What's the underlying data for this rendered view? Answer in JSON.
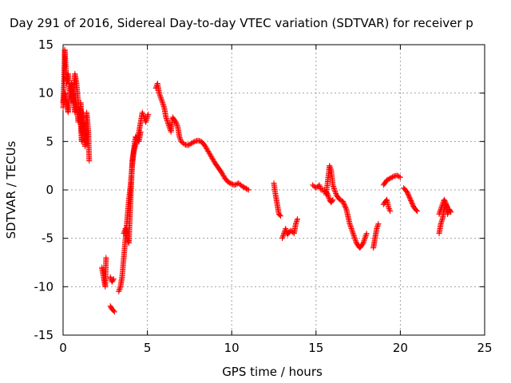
{
  "chart_data": {
    "type": "scatter",
    "title": "Day 291 of 2016, Sidereal Day-to-day VTEC variation (SDTVAR) for receiver p",
    "xlabel": "GPS time / hours",
    "ylabel": "SDTVAR / TECUs",
    "xlim": [
      0,
      25
    ],
    "ylim": [
      -15,
      15
    ],
    "xticks": [
      0,
      5,
      10,
      15,
      20,
      25
    ],
    "yticks": [
      -15,
      -10,
      -5,
      0,
      5,
      10,
      15
    ],
    "grid": true,
    "marker": "+",
    "color": "#ff0000",
    "segments": [
      [
        [
          0.0,
          9
        ],
        [
          0.05,
          11
        ],
        [
          0.1,
          14.5
        ],
        [
          0.15,
          13
        ],
        [
          0.2,
          11
        ],
        [
          0.3,
          12
        ],
        [
          0.4,
          10
        ],
        [
          0.5,
          11
        ],
        [
          0.6,
          9
        ],
        [
          0.7,
          12
        ],
        [
          0.8,
          11
        ],
        [
          0.9,
          9
        ],
        [
          1.0,
          7
        ],
        [
          1.05,
          9
        ],
        [
          1.1,
          6
        ],
        [
          1.2,
          8
        ],
        [
          1.3,
          5
        ],
        [
          1.4,
          8
        ],
        [
          1.5,
          6
        ],
        [
          1.55,
          3
        ]
      ],
      [
        [
          0.0,
          8.5
        ],
        [
          0.1,
          10
        ],
        [
          0.2,
          9
        ],
        [
          0.3,
          8
        ],
        [
          0.4,
          10
        ],
        [
          0.5,
          9.5
        ],
        [
          0.6,
          10
        ],
        [
          0.7,
          8
        ],
        [
          0.8,
          9
        ],
        [
          0.9,
          7
        ],
        [
          1.0,
          8.5
        ],
        [
          1.1,
          5
        ],
        [
          1.2,
          7
        ],
        [
          1.3,
          4.5
        ],
        [
          1.4,
          6
        ]
      ],
      [
        [
          2.3,
          -8
        ],
        [
          2.4,
          -9
        ],
        [
          2.5,
          -10
        ],
        [
          2.55,
          -7
        ]
      ],
      [
        [
          2.8,
          -9
        ],
        [
          2.9,
          -9.5
        ],
        [
          3.0,
          -9.2
        ]
      ],
      [
        [
          2.8,
          -12
        ],
        [
          2.9,
          -12.3
        ],
        [
          3.05,
          -12.6
        ]
      ],
      [
        [
          3.3,
          -10.5
        ],
        [
          3.4,
          -10
        ],
        [
          3.5,
          -9
        ],
        [
          3.6,
          -7
        ],
        [
          3.7,
          -5
        ],
        [
          3.8,
          -3
        ],
        [
          3.9,
          -1
        ],
        [
          4.0,
          0.5
        ],
        [
          4.1,
          2.5
        ],
        [
          4.2,
          4
        ],
        [
          4.35,
          5
        ],
        [
          4.5,
          6
        ],
        [
          4.6,
          7
        ],
        [
          4.7,
          8
        ],
        [
          4.8,
          7.5
        ],
        [
          4.9,
          7
        ],
        [
          5.05,
          7.8
        ]
      ],
      [
        [
          3.6,
          -4.5
        ],
        [
          3.7,
          -4
        ],
        [
          3.8,
          -5
        ],
        [
          3.9,
          -5.5
        ],
        [
          4.1,
          3
        ],
        [
          4.3,
          5.5
        ],
        [
          4.5,
          5
        ],
        [
          4.6,
          6
        ]
      ],
      [
        [
          5.5,
          10.5
        ],
        [
          5.6,
          11
        ],
        [
          5.7,
          10
        ],
        [
          5.8,
          9.5
        ],
        [
          5.9,
          9
        ],
        [
          6.0,
          8.5
        ],
        [
          6.1,
          7.5
        ],
        [
          6.2,
          7
        ],
        [
          6.3,
          6.5
        ],
        [
          6.4,
          6
        ],
        [
          6.5,
          7.5
        ],
        [
          6.6,
          7.2
        ],
        [
          6.7,
          7
        ],
        [
          6.8,
          6.5
        ],
        [
          6.9,
          5.5
        ],
        [
          7.0,
          5
        ],
        [
          7.2,
          4.7
        ],
        [
          7.4,
          4.6
        ],
        [
          7.6,
          4.8
        ],
        [
          7.8,
          5
        ],
        [
          8.0,
          5.1
        ],
        [
          8.2,
          5
        ],
        [
          8.4,
          4.6
        ],
        [
          8.6,
          4
        ],
        [
          8.8,
          3.4
        ],
        [
          9.0,
          2.8
        ],
        [
          9.2,
          2.3
        ],
        [
          9.4,
          1.8
        ],
        [
          9.6,
          1.2
        ],
        [
          9.8,
          0.8
        ],
        [
          10.0,
          0.6
        ],
        [
          10.2,
          0.5
        ],
        [
          10.4,
          0.7
        ],
        [
          10.6,
          0.4
        ],
        [
          10.8,
          0.2
        ],
        [
          11.0,
          0.0
        ]
      ],
      [
        [
          12.5,
          0.7
        ],
        [
          12.6,
          -0.5
        ],
        [
          12.7,
          -1.5
        ],
        [
          12.8,
          -2.5
        ],
        [
          12.9,
          -2.7
        ]
      ],
      [
        [
          13.0,
          -5
        ],
        [
          13.1,
          -4.5
        ],
        [
          13.2,
          -4
        ],
        [
          13.3,
          -4.6
        ],
        [
          13.5,
          -4.2
        ],
        [
          13.7,
          -4.5
        ],
        [
          13.8,
          -3.5
        ],
        [
          13.9,
          -3
        ]
      ],
      [
        [
          14.8,
          0.5
        ],
        [
          15.0,
          0.2
        ],
        [
          15.2,
          0.5
        ],
        [
          15.3,
          0.0
        ],
        [
          15.5,
          0.0
        ],
        [
          15.6,
          -0.5
        ],
        [
          15.7,
          1
        ],
        [
          15.8,
          2.5
        ],
        [
          15.9,
          2
        ],
        [
          16.0,
          0.5
        ],
        [
          16.2,
          -0.5
        ],
        [
          16.4,
          -1
        ],
        [
          16.6,
          -1.2
        ],
        [
          16.8,
          -2
        ],
        [
          17.0,
          -3.5
        ],
        [
          17.2,
          -4.5
        ],
        [
          17.4,
          -5.5
        ],
        [
          17.6,
          -6
        ],
        [
          17.8,
          -5.5
        ],
        [
          18.0,
          -4.5
        ]
      ],
      [
        [
          15.6,
          -0.2
        ],
        [
          15.7,
          -0.5
        ],
        [
          15.8,
          -1
        ],
        [
          15.9,
          -1.3
        ],
        [
          16.0,
          -1
        ]
      ],
      [
        [
          18.4,
          -6
        ],
        [
          18.5,
          -5
        ],
        [
          18.6,
          -4
        ],
        [
          18.7,
          -3.5
        ]
      ],
      [
        [
          19.0,
          0.5
        ],
        [
          19.2,
          1
        ],
        [
          19.4,
          1.2
        ],
        [
          19.6,
          1.4
        ],
        [
          19.8,
          1.5
        ],
        [
          20.0,
          1.3
        ]
      ],
      [
        [
          19.0,
          -1.5
        ],
        [
          19.2,
          -1
        ],
        [
          19.3,
          -1.8
        ],
        [
          19.4,
          -2.2
        ]
      ],
      [
        [
          20.2,
          0.2
        ],
        [
          20.4,
          -0.2
        ],
        [
          20.6,
          -1
        ],
        [
          20.8,
          -1.8
        ],
        [
          21.0,
          -2.2
        ]
      ],
      [
        [
          22.3,
          -4.5
        ],
        [
          22.4,
          -3.5
        ],
        [
          22.5,
          -3
        ],
        [
          22.6,
          -2
        ],
        [
          22.7,
          -1.5
        ],
        [
          22.8,
          -2.5
        ],
        [
          22.9,
          -2
        ],
        [
          23.0,
          -2.3
        ]
      ],
      [
        [
          22.3,
          -2.5
        ],
        [
          22.5,
          -1.5
        ],
        [
          22.6,
          -1
        ],
        [
          22.8,
          -1.8
        ]
      ]
    ]
  }
}
